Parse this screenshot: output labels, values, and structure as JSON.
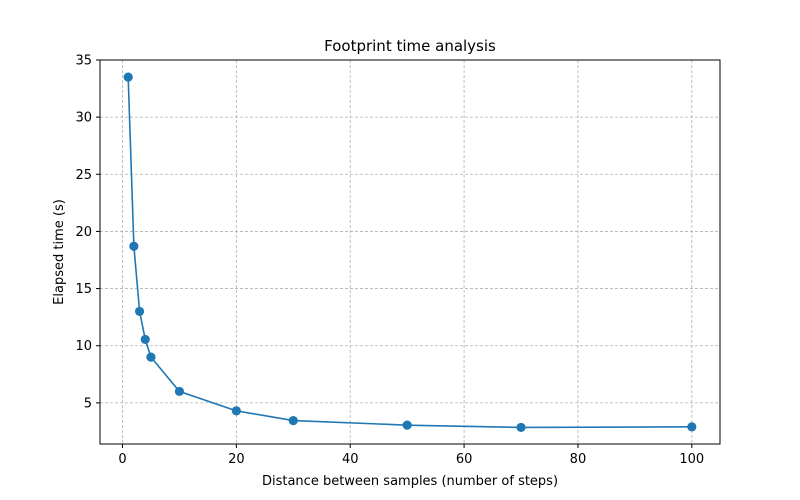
{
  "chart_data": {
    "type": "line",
    "title": "Footprint time analysis",
    "xlabel": "Distance between samples (number of steps)",
    "ylabel": "Elapsed time (s)",
    "xlim": [
      -3.95,
      104.95
    ],
    "ylim": [
      1.4,
      35
    ],
    "xticks": [
      0,
      20,
      40,
      60,
      80,
      100
    ],
    "yticks": [
      5,
      10,
      15,
      20,
      25,
      30,
      35
    ],
    "grid": true,
    "series": [
      {
        "color": "#1f77b4",
        "marker": "circle",
        "x": [
          1,
          2,
          3,
          4,
          5,
          10,
          20,
          30,
          50,
          70,
          100
        ],
        "y": [
          33.5,
          18.7,
          13.0,
          10.55,
          9.0,
          6.0,
          4.3,
          3.45,
          3.05,
          2.85,
          2.9
        ]
      }
    ]
  }
}
